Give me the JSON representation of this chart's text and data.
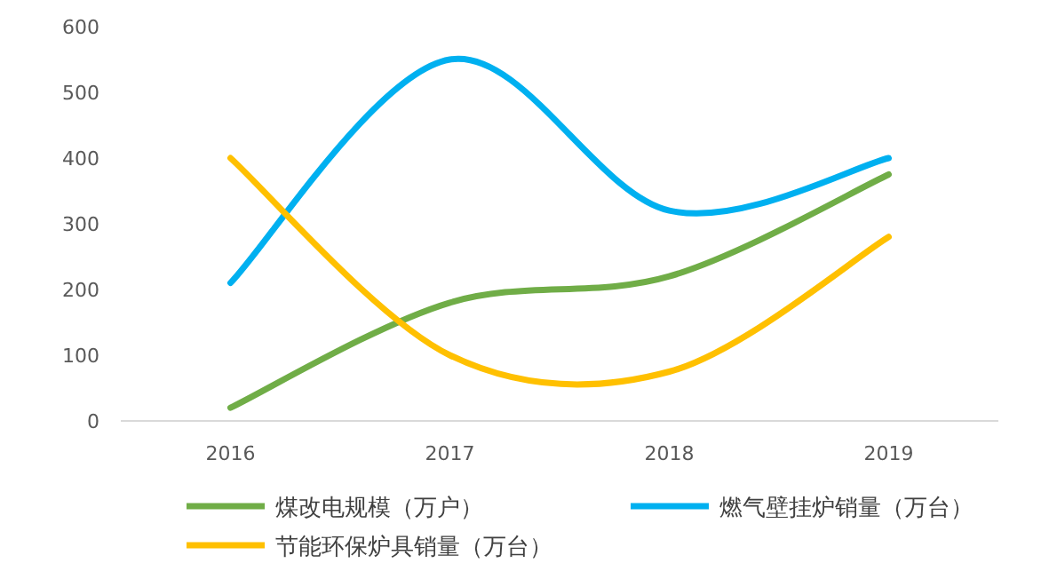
{
  "chart_data": {
    "type": "line",
    "categories": [
      "2016",
      "2017",
      "2018",
      "2019"
    ],
    "series": [
      {
        "name": "煤改电规模（万户）",
        "color": "#70ad47",
        "values": [
          20,
          180,
          220,
          375
        ]
      },
      {
        "name": "燃气壁挂炉销量（万台）",
        "color": "#00b0f0",
        "values": [
          210,
          550,
          320,
          400
        ]
      },
      {
        "name": "节能环保炉具销量（万台）",
        "color": "#ffc000",
        "values": [
          400,
          100,
          75,
          280
        ]
      }
    ],
    "ylim": [
      0,
      600
    ],
    "yticks": [
      0,
      100,
      200,
      300,
      400,
      500,
      600
    ],
    "grid": false,
    "legend": "bottom",
    "marker": "none",
    "line_style": "solid"
  }
}
